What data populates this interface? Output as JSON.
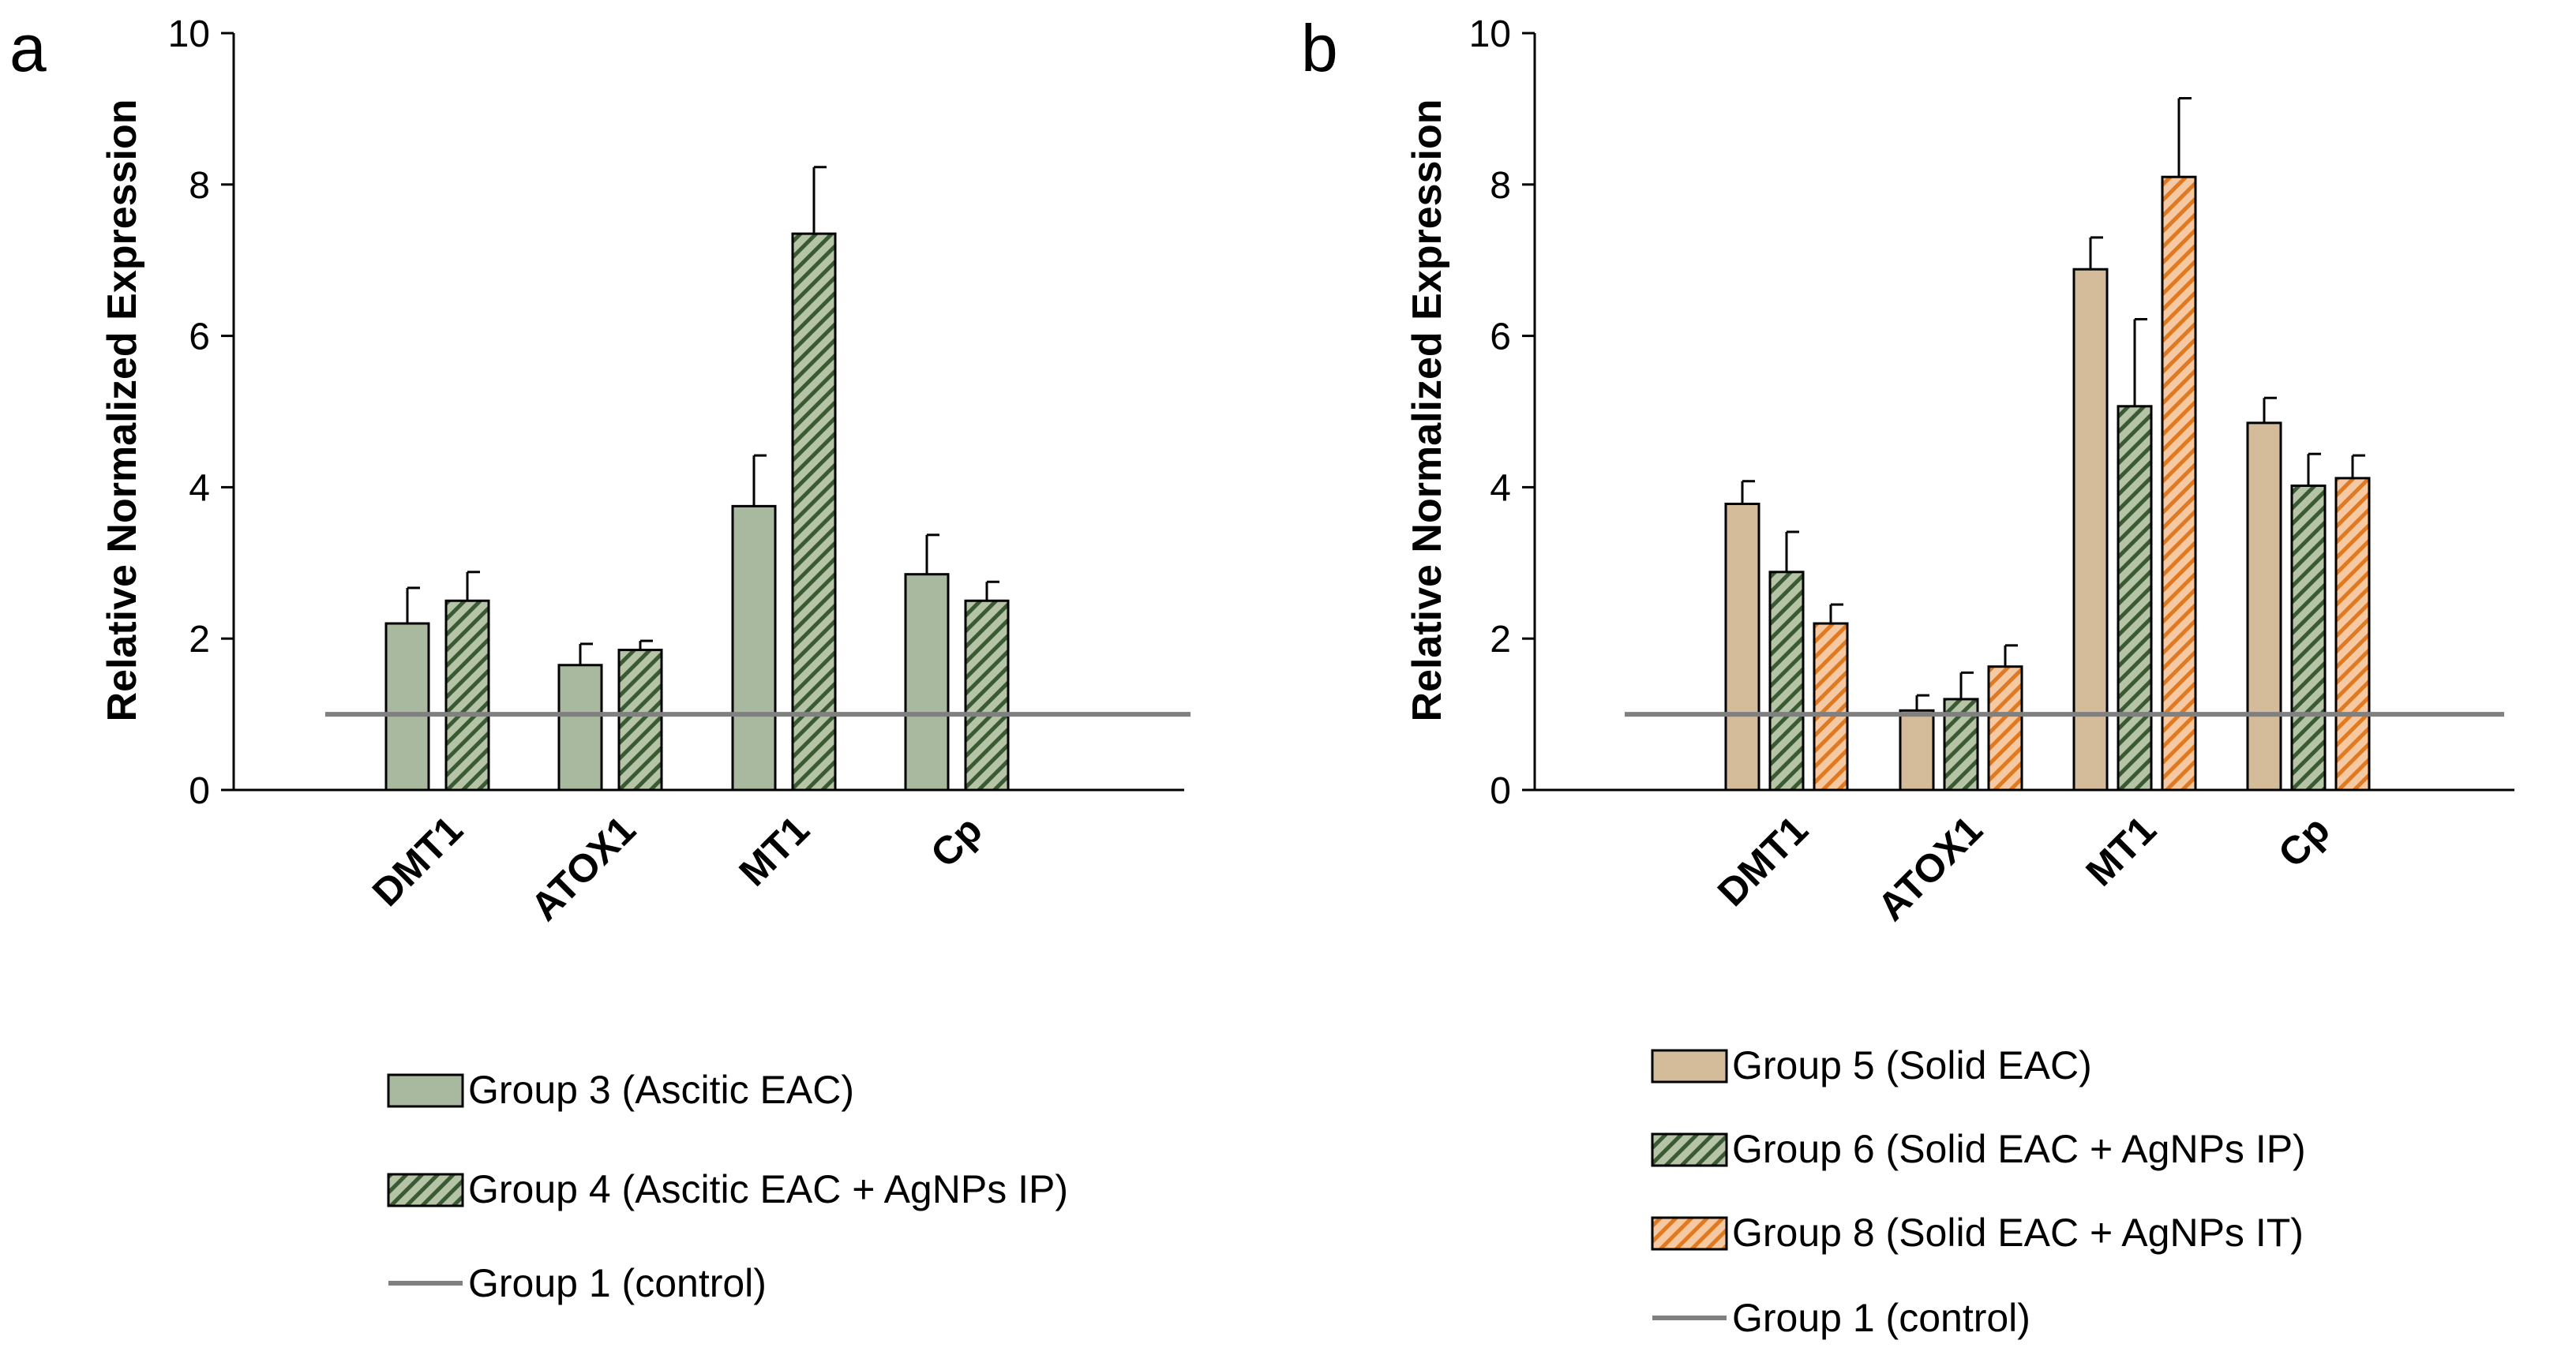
{
  "colors": {
    "group3": "#a9b99f",
    "group5": "#d4bc9b",
    "hatch_green_bg": "#b5c3a6",
    "hatch_green_line": "#3a5a34",
    "hatch_orange_bg": "#f6c9a3",
    "hatch_orange_line": "#e07a22",
    "control": "#808080",
    "axis": "#000000"
  },
  "chart_data": [
    {
      "panel_label": "a",
      "type": "bar",
      "ylabel": "Relative Normalized Expression",
      "ylim": [
        0,
        10
      ],
      "yticks": [
        "0",
        "2",
        "4",
        "6",
        "8",
        "10"
      ],
      "categories": [
        "DMT1",
        "ATOX1",
        "MT1",
        "Cp"
      ],
      "series": [
        {
          "name": "Group 3 (Ascitic EAC)",
          "style": "solid-green",
          "values": [
            2.2,
            1.65,
            3.75,
            2.85
          ],
          "errors": [
            0.47,
            0.28,
            0.67,
            0.52
          ]
        },
        {
          "name": "Group 4 (Ascitic EAC + AgNPs IP)",
          "style": "hatch-green",
          "values": [
            2.5,
            1.85,
            7.35,
            2.5
          ],
          "errors": [
            0.38,
            0.12,
            0.88,
            0.25
          ]
        }
      ],
      "reference_line": {
        "name": "Group 1 (control)",
        "value": 1.0
      }
    },
    {
      "panel_label": "b",
      "type": "bar",
      "ylabel": "Relative Normalized Expression",
      "ylim": [
        0,
        10
      ],
      "yticks": [
        "0",
        "2",
        "4",
        "6",
        "8",
        "10"
      ],
      "categories": [
        "DMT1",
        "ATOX1",
        "MT1",
        "Cp"
      ],
      "series": [
        {
          "name": "Group 5 (Solid EAC)",
          "style": "solid-tan",
          "values": [
            3.78,
            1.05,
            6.88,
            4.85
          ],
          "errors": [
            0.3,
            0.2,
            0.42,
            0.33
          ]
        },
        {
          "name": "Group 6 (Solid EAC + AgNPs IP)",
          "style": "hatch-green",
          "values": [
            2.88,
            1.2,
            5.07,
            4.02
          ],
          "errors": [
            0.53,
            0.35,
            1.15,
            0.42
          ]
        },
        {
          "name": "Group 8 (Solid EAC + AgNPs IT)",
          "style": "hatch-orange",
          "values": [
            2.2,
            1.63,
            8.1,
            4.12
          ],
          "errors": [
            0.25,
            0.28,
            1.04,
            0.3
          ]
        }
      ],
      "reference_line": {
        "name": "Group 1 (control)",
        "value": 1.0
      }
    }
  ]
}
